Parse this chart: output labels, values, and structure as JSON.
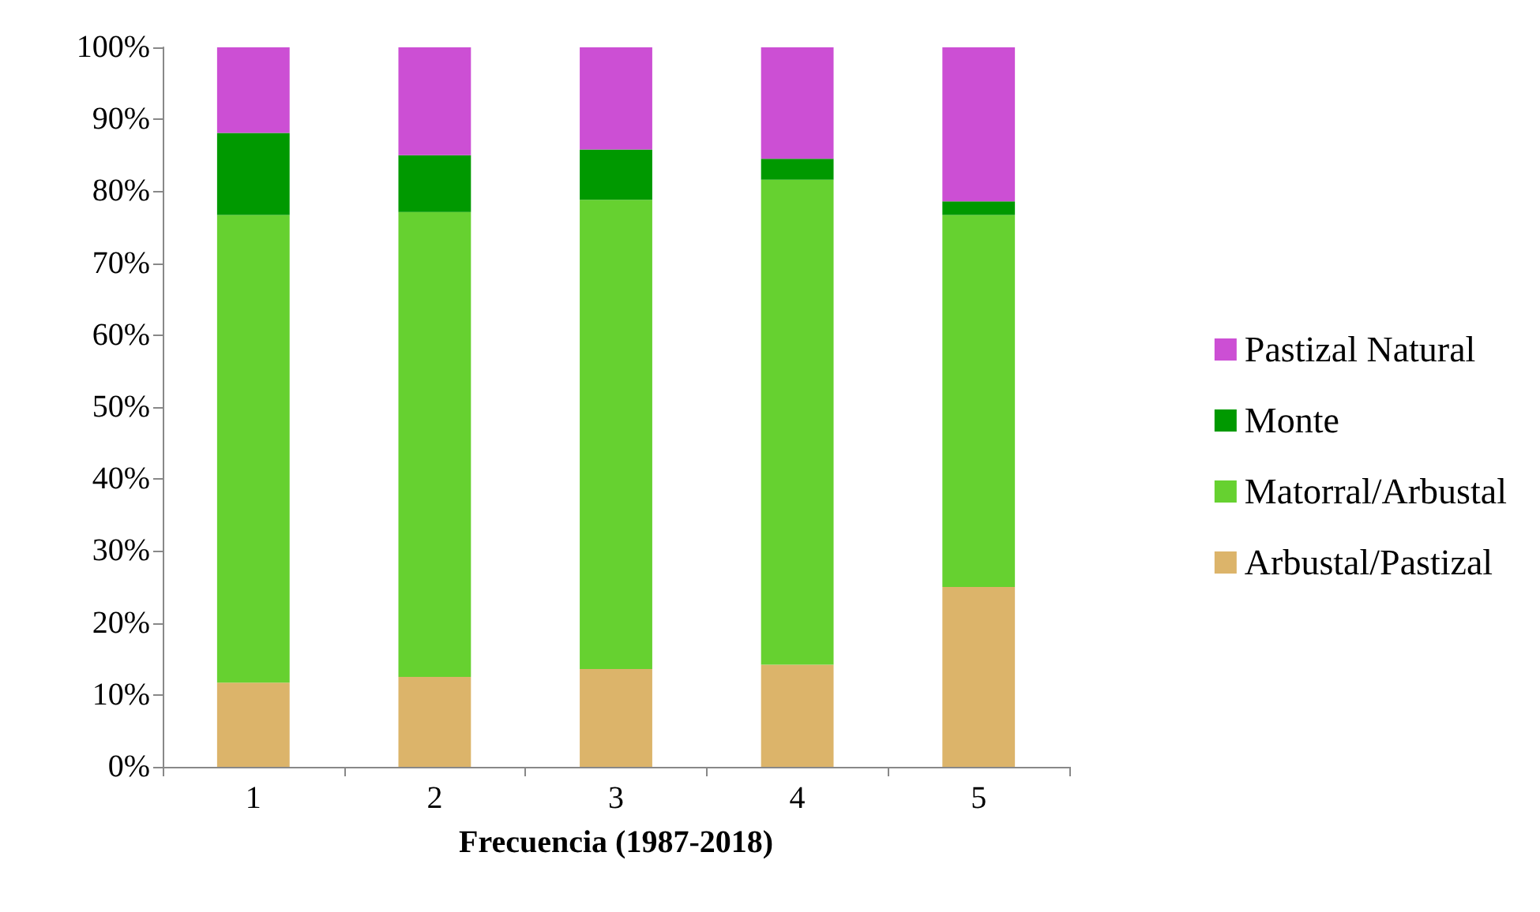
{
  "chart_data": {
    "type": "bar",
    "stacked": true,
    "xlabel": "Frecuencia (1987-2018)",
    "categories": [
      "1",
      "2",
      "3",
      "4",
      "5"
    ],
    "series": [
      {
        "name": "Arbustal/Pastizal",
        "color": "#dcb46a",
        "values": [
          11.7,
          12.5,
          13.6,
          14.2,
          25.0
        ]
      },
      {
        "name": "Matorral/Arbustal",
        "color": "#66d130",
        "values": [
          65.0,
          64.6,
          65.2,
          67.4,
          51.7
        ]
      },
      {
        "name": "Monte",
        "color": "#009900",
        "values": [
          11.4,
          7.9,
          7.0,
          2.9,
          1.9
        ]
      },
      {
        "name": "Pastizal Natural",
        "color": "#cc4fd4",
        "values": [
          11.9,
          15.0,
          14.2,
          15.5,
          21.4
        ]
      }
    ],
    "ylim": [
      0,
      100
    ],
    "yticks": [
      {
        "value": 0,
        "label": "0%"
      },
      {
        "value": 10,
        "label": "10%"
      },
      {
        "value": 20,
        "label": "20%"
      },
      {
        "value": 30,
        "label": "30%"
      },
      {
        "value": 40,
        "label": "40%"
      },
      {
        "value": 50,
        "label": "50%"
      },
      {
        "value": 60,
        "label": "60%"
      },
      {
        "value": 70,
        "label": "70%"
      },
      {
        "value": 80,
        "label": "80%"
      },
      {
        "value": 90,
        "label": "90%"
      },
      {
        "value": 100,
        "label": "100%"
      }
    ],
    "grid": false,
    "legend": "right"
  }
}
